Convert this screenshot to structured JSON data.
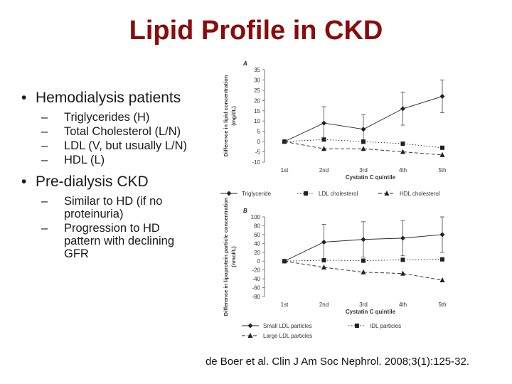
{
  "slide": {
    "title": "Lipid Profile in CKD",
    "citation": "de Boer et al. Clin J Am Soc Nephrol. 2008;3(1):125-32."
  },
  "bullets": [
    {
      "text": "Hemodialysis patients",
      "sub": [
        "Triglycerides (H)",
        "Total Cholesterol (L/N)",
        "LDL (V, but usually L/N)",
        "HDL (L)"
      ]
    },
    {
      "text": "Pre-dialysis CKD",
      "sub": [
        "Similar to HD (if no proteinuria)",
        "Progression to HD pattern with declining GFR"
      ]
    }
  ],
  "chart_data": [
    {
      "panel": "A",
      "type": "line",
      "categories": [
        "1st",
        "2nd",
        "3rd",
        "4th",
        "5th"
      ],
      "xlabel": "Cystatin C quintile",
      "ylabel": "Difference in lipid concentration (mg/dL)",
      "ylim": [
        -10,
        35
      ],
      "yticks": [
        -10,
        -5,
        0,
        5,
        10,
        15,
        20,
        25,
        30,
        35
      ],
      "grid": false,
      "legend_position": "bottom",
      "series": [
        {
          "name": "Triglyceride",
          "values": [
            0,
            9,
            6,
            16,
            22
          ],
          "err": [
            0,
            8,
            7,
            8,
            8
          ],
          "marker": "diamond",
          "dash": "solid"
        },
        {
          "name": "LDL cholesterol",
          "values": [
            0,
            1,
            0,
            -1,
            -3
          ],
          "err": [
            0,
            0,
            0,
            0,
            0
          ],
          "marker": "square",
          "dash": "dotted"
        },
        {
          "name": "HDL cholesterol",
          "values": [
            0,
            -3.5,
            -3.5,
            -5,
            -6.5
          ],
          "err": [
            0,
            0,
            0,
            0,
            0
          ],
          "marker": "triangle",
          "dash": "dashed"
        }
      ]
    },
    {
      "panel": "B",
      "type": "line",
      "categories": [
        "1st",
        "2nd",
        "3rd",
        "4th",
        "5th"
      ],
      "xlabel": "Cystatin C quintile",
      "ylabel": "Difference in lipoprotein particle concentration (nmol/L)",
      "ylim": [
        -80,
        100
      ],
      "yticks": [
        -80,
        -60,
        -40,
        -20,
        0,
        20,
        40,
        60,
        80,
        100
      ],
      "grid": false,
      "legend_position": "bottom",
      "series": [
        {
          "name": "Small LDL particles",
          "values": [
            0,
            43,
            49,
            52,
            60
          ],
          "err": [
            0,
            40,
            40,
            40,
            40
          ],
          "marker": "diamond",
          "dash": "solid"
        },
        {
          "name": "IDL particles",
          "values": [
            0,
            2,
            1,
            3,
            4
          ],
          "err": [
            0,
            0,
            0,
            0,
            0
          ],
          "marker": "square",
          "dash": "dotted"
        },
        {
          "name": "Large LDL particles",
          "values": [
            0,
            -14,
            -25,
            -28,
            -43
          ],
          "err": [
            0,
            0,
            0,
            0,
            0
          ],
          "marker": "triangle",
          "dash": "dashed"
        }
      ]
    }
  ]
}
